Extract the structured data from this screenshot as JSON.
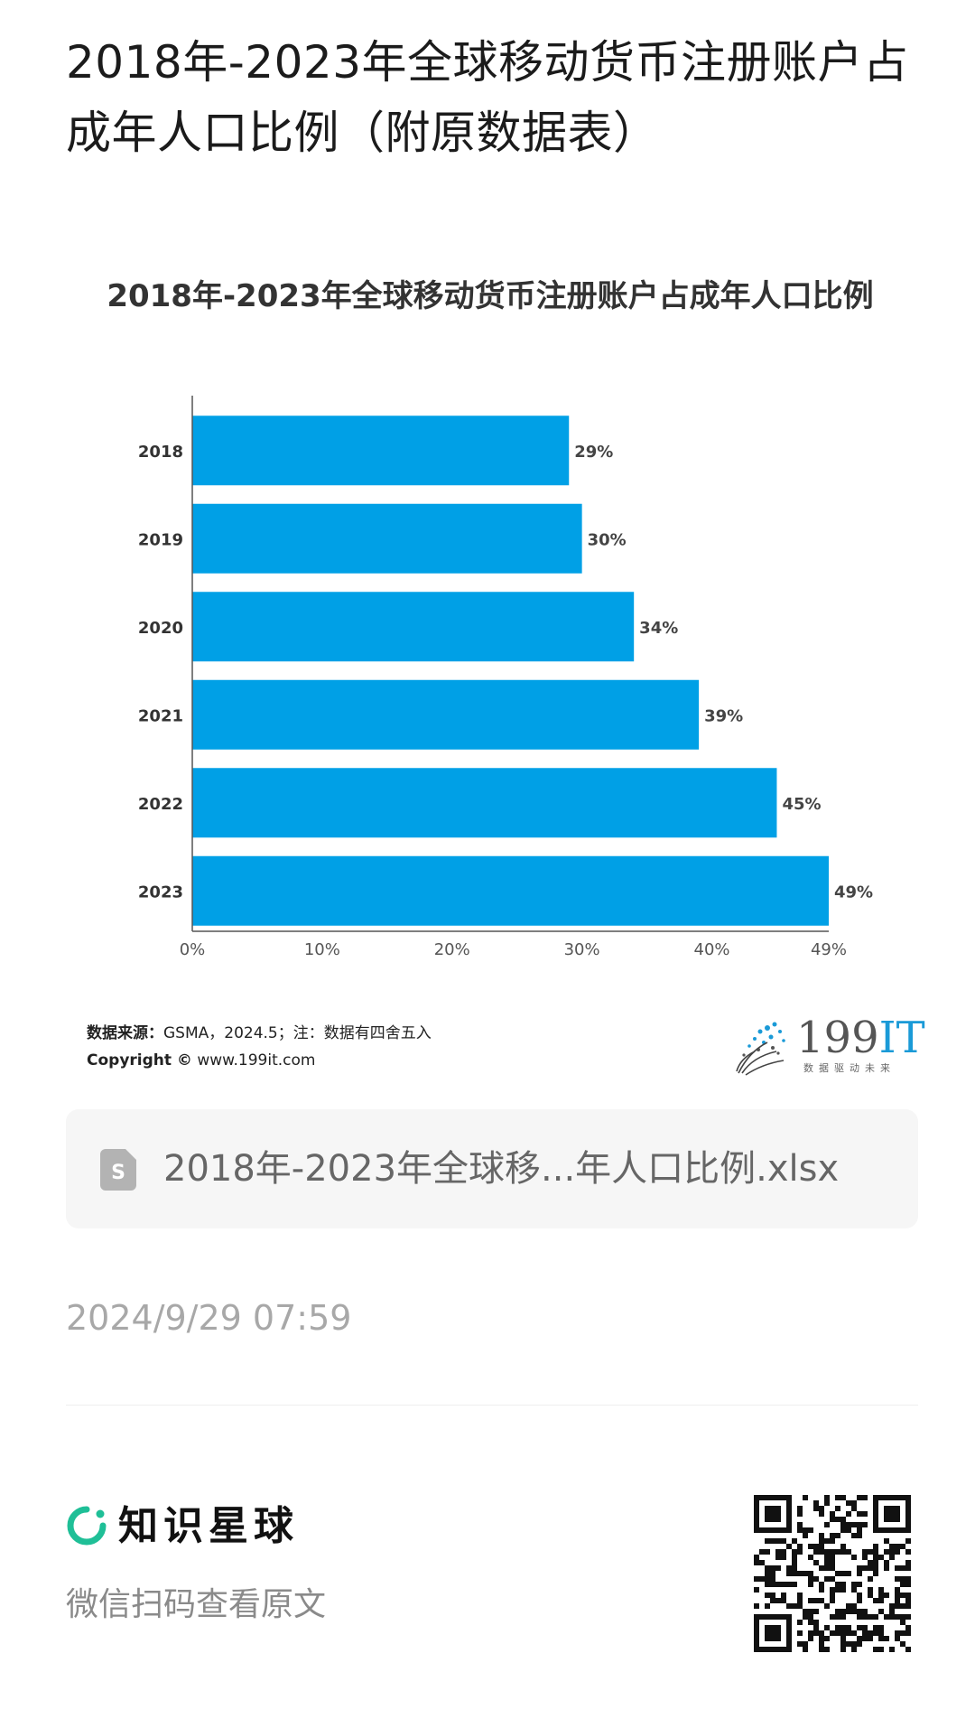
{
  "post": {
    "title": "2018年-2023年全球移动货币注册账户占成年人口比例（附原数据表）",
    "timestamp": "2024/9/29 07:59"
  },
  "chart_data": {
    "type": "bar",
    "orientation": "horizontal",
    "title": "2018年-2023年全球移动货币注册账户占成年人口比例",
    "categories": [
      "2018",
      "2019",
      "2020",
      "2021",
      "2022",
      "2023"
    ],
    "values": [
      29,
      30,
      34,
      39,
      45,
      49
    ],
    "value_labels": [
      "29%",
      "30%",
      "34%",
      "39%",
      "45%",
      "49%"
    ],
    "x_ticks": [
      "0%",
      "10%",
      "20%",
      "30%",
      "40%",
      "49%"
    ],
    "x_tick_values": [
      0,
      10,
      20,
      30,
      40,
      49
    ],
    "xlim": [
      0,
      49
    ],
    "bar_color": "#00a0e6",
    "grid": false,
    "legend": "none"
  },
  "source": {
    "label": "数据来源：",
    "text": "GSMA，2024.5；注：数据有四舍五入",
    "copyright_label": "Copyright ©",
    "copyright_text": "www.199it.com"
  },
  "logo": {
    "number": "199",
    "it": "IT",
    "tagline": "数据驱动未来",
    "accent": "#1a9ad7"
  },
  "attachment": {
    "icon": "spreadsheet-file-icon",
    "file_name": "2018年-2023年全球移...年人口比例.xlsx"
  },
  "footer": {
    "brand_name": "知识星球",
    "brand_color": "#1fbf97",
    "scan_hint": "微信扫码查看原文",
    "qr_icon": "qr-code-icon"
  }
}
